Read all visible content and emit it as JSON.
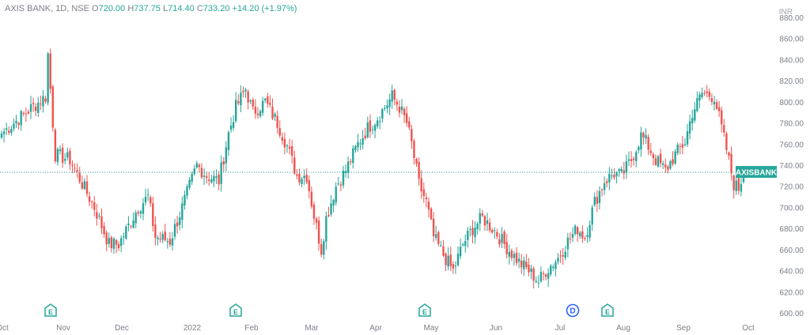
{
  "legend": {
    "symbol": "AXIS BANK, 1D, NSE",
    "open_label": "O",
    "open": "720.00",
    "high_label": "H",
    "high": "737.75",
    "low_label": "L",
    "low": "714.40",
    "close_label": "C",
    "close": "733.20",
    "change": "+14.20 (+1.97%)"
  },
  "currency": "INR",
  "colors": {
    "up": "#26a69a",
    "down": "#ef5350",
    "axis_text": "#7a7f87",
    "price_line": "#26a69a"
  },
  "chart_data": {
    "type": "candlestick",
    "ylim": [
      600,
      880
    ],
    "yticks": [
      600,
      620,
      640,
      660,
      680,
      700,
      720,
      740,
      760,
      780,
      800,
      820,
      840,
      860,
      880
    ],
    "ytick_labels": [
      "600.00",
      "620.00",
      "640.00",
      "660.00",
      "680.00",
      "700.00",
      "720.00",
      "740.00",
      "760.00",
      "780.00",
      "800.00",
      "820.00",
      "840.00",
      "860.00",
      "880.00"
    ],
    "xticks": [
      "Oct",
      "Nov",
      "Dec",
      "2022",
      "Feb",
      "Mar",
      "Apr",
      "May",
      "Jun",
      "Jul",
      "Aug",
      "Sep",
      "Oct"
    ],
    "last_price": 733.2,
    "price_label": "AXISBANK",
    "events": [
      {
        "label": "E",
        "month": "Oct",
        "day": 26,
        "type": "earnings"
      },
      {
        "label": "E",
        "month": "Jan",
        "day": 25,
        "type": "earnings"
      },
      {
        "label": "E",
        "month": "Apr",
        "day": 28,
        "type": "earnings"
      },
      {
        "label": "D",
        "month": "Jul",
        "day": 7,
        "type": "dividend"
      },
      {
        "label": "E",
        "month": "Jul",
        "day": 27,
        "type": "earnings"
      }
    ],
    "anchors": [
      {
        "i": 0,
        "p": 770
      },
      {
        "i": 10,
        "p": 790
      },
      {
        "i": 18,
        "p": 805
      },
      {
        "i": 19,
        "p": 845
      },
      {
        "i": 21,
        "p": 780
      },
      {
        "i": 22,
        "p": 750
      },
      {
        "i": 28,
        "p": 745
      },
      {
        "i": 38,
        "p": 700
      },
      {
        "i": 44,
        "p": 665
      },
      {
        "i": 48,
        "p": 665
      },
      {
        "i": 56,
        "p": 700
      },
      {
        "i": 60,
        "p": 710
      },
      {
        "i": 63,
        "p": 672
      },
      {
        "i": 69,
        "p": 668
      },
      {
        "i": 74,
        "p": 700
      },
      {
        "i": 80,
        "p": 740
      },
      {
        "i": 84,
        "p": 730
      },
      {
        "i": 89,
        "p": 725
      },
      {
        "i": 93,
        "p": 770
      },
      {
        "i": 96,
        "p": 795
      },
      {
        "i": 100,
        "p": 812
      },
      {
        "i": 103,
        "p": 790
      },
      {
        "i": 108,
        "p": 800
      },
      {
        "i": 113,
        "p": 780
      },
      {
        "i": 117,
        "p": 758
      },
      {
        "i": 121,
        "p": 730
      },
      {
        "i": 125,
        "p": 730
      },
      {
        "i": 128,
        "p": 692
      },
      {
        "i": 131,
        "p": 660
      },
      {
        "i": 133,
        "p": 690
      },
      {
        "i": 137,
        "p": 720
      },
      {
        "i": 141,
        "p": 735
      },
      {
        "i": 146,
        "p": 760
      },
      {
        "i": 150,
        "p": 775
      },
      {
        "i": 154,
        "p": 785
      },
      {
        "i": 160,
        "p": 805
      },
      {
        "i": 163,
        "p": 795
      },
      {
        "i": 166,
        "p": 780
      },
      {
        "i": 168,
        "p": 760
      },
      {
        "i": 171,
        "p": 722
      },
      {
        "i": 174,
        "p": 705
      },
      {
        "i": 177,
        "p": 672
      },
      {
        "i": 181,
        "p": 655
      },
      {
        "i": 185,
        "p": 640
      },
      {
        "i": 189,
        "p": 665
      },
      {
        "i": 193,
        "p": 680
      },
      {
        "i": 197,
        "p": 690
      },
      {
        "i": 202,
        "p": 678
      },
      {
        "i": 206,
        "p": 665
      },
      {
        "i": 212,
        "p": 648
      },
      {
        "i": 216,
        "p": 640
      },
      {
        "i": 220,
        "p": 630
      },
      {
        "i": 223,
        "p": 640
      },
      {
        "i": 228,
        "p": 652
      },
      {
        "i": 232,
        "p": 668
      },
      {
        "i": 236,
        "p": 680
      },
      {
        "i": 239,
        "p": 672
      },
      {
        "i": 243,
        "p": 705
      },
      {
        "i": 247,
        "p": 725
      },
      {
        "i": 251,
        "p": 732
      },
      {
        "i": 254,
        "p": 730
      },
      {
        "i": 258,
        "p": 745
      },
      {
        "i": 262,
        "p": 768
      },
      {
        "i": 264,
        "p": 762
      },
      {
        "i": 268,
        "p": 745
      },
      {
        "i": 272,
        "p": 735
      },
      {
        "i": 276,
        "p": 750
      },
      {
        "i": 280,
        "p": 762
      },
      {
        "i": 283,
        "p": 790
      },
      {
        "i": 287,
        "p": 808
      },
      {
        "i": 292,
        "p": 805
      },
      {
        "i": 294,
        "p": 785
      },
      {
        "i": 297,
        "p": 755
      },
      {
        "i": 300,
        "p": 722
      },
      {
        "i": 302,
        "p": 718
      },
      {
        "i": 304,
        "p": 733.2
      }
    ]
  }
}
